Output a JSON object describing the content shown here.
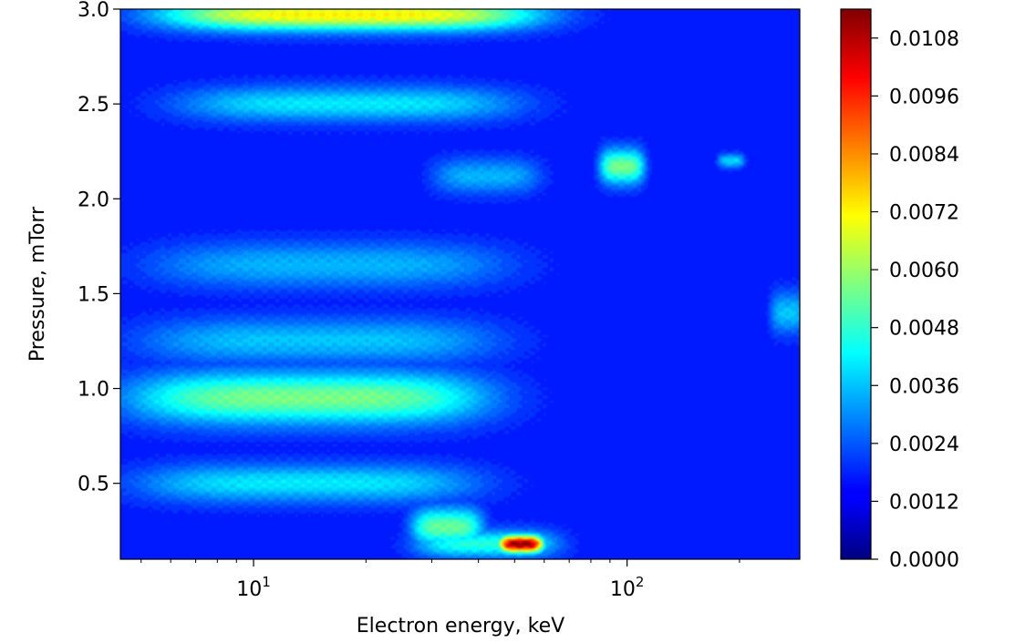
{
  "chart_data": {
    "type": "heatmap",
    "xlabel": "Electron energy, keV",
    "ylabel": "Pressure, mTorr",
    "xscale": "log",
    "xlim": [
      4.4,
      290
    ],
    "ylim": [
      0.1,
      3.0
    ],
    "x_ticks": [
      {
        "value": 10,
        "label": "10",
        "exp": "1"
      },
      {
        "value": 100,
        "label": "10",
        "exp": "2"
      }
    ],
    "y_ticks": [
      0.5,
      1.0,
      1.5,
      2.0,
      2.5,
      3.0
    ],
    "y_tick_labels": [
      "0.5",
      "1.0",
      "1.5",
      "2.0",
      "2.5",
      "3.0"
    ],
    "colormap": "jet",
    "colorbar": {
      "min": 0.0,
      "max": 0.0114,
      "ticks": [
        0.0,
        0.0012,
        0.0024,
        0.0036,
        0.0048,
        0.006,
        0.0072,
        0.0084,
        0.0096,
        0.0108
      ],
      "tick_labels": [
        "0.0000",
        "0.0012",
        "0.0024",
        "0.0036",
        "0.0048",
        "0.0060",
        "0.0072",
        "0.0084",
        "0.0096",
        "0.0108"
      ]
    },
    "background_value": 0.0018,
    "features": [
      {
        "energy_keV": 18,
        "pressure": 2.97,
        "value": 0.0074,
        "energy_width_dec": 0.42,
        "pressure_width": 0.09
      },
      {
        "energy_keV": 18,
        "pressure": 2.5,
        "value": 0.0042,
        "energy_width_dec": 0.38,
        "pressure_width": 0.1
      },
      {
        "energy_keV": 42,
        "pressure": 2.12,
        "value": 0.0036,
        "energy_width_dec": 0.12,
        "pressure_width": 0.1
      },
      {
        "energy_keV": 97,
        "pressure": 2.17,
        "value": 0.0058,
        "energy_width_dec": 0.05,
        "pressure_width": 0.1
      },
      {
        "energy_keV": 190,
        "pressure": 2.2,
        "value": 0.004,
        "energy_width_dec": 0.03,
        "pressure_width": 0.04
      },
      {
        "energy_keV": 16,
        "pressure": 1.65,
        "value": 0.0036,
        "energy_width_dec": 0.4,
        "pressure_width": 0.13
      },
      {
        "energy_keV": 15,
        "pressure": 1.25,
        "value": 0.0038,
        "energy_width_dec": 0.4,
        "pressure_width": 0.13
      },
      {
        "energy_keV": 14,
        "pressure": 0.95,
        "value": 0.0058,
        "energy_width_dec": 0.4,
        "pressure_width": 0.15
      },
      {
        "energy_keV": 14,
        "pressure": 0.5,
        "value": 0.0042,
        "energy_width_dec": 0.38,
        "pressure_width": 0.11
      },
      {
        "energy_keV": 33,
        "pressure": 0.27,
        "value": 0.0056,
        "energy_width_dec": 0.08,
        "pressure_width": 0.11
      },
      {
        "energy_keV": 42,
        "pressure": 0.18,
        "value": 0.0048,
        "energy_width_dec": 0.16,
        "pressure_width": 0.08
      },
      {
        "energy_keV": 52,
        "pressure": 0.18,
        "value": 0.0114,
        "energy_width_dec": 0.05,
        "pressure_width": 0.05
      },
      {
        "energy_keV": 270,
        "pressure": 1.4,
        "value": 0.0038,
        "energy_width_dec": 0.04,
        "pressure_width": 0.12
      }
    ]
  }
}
